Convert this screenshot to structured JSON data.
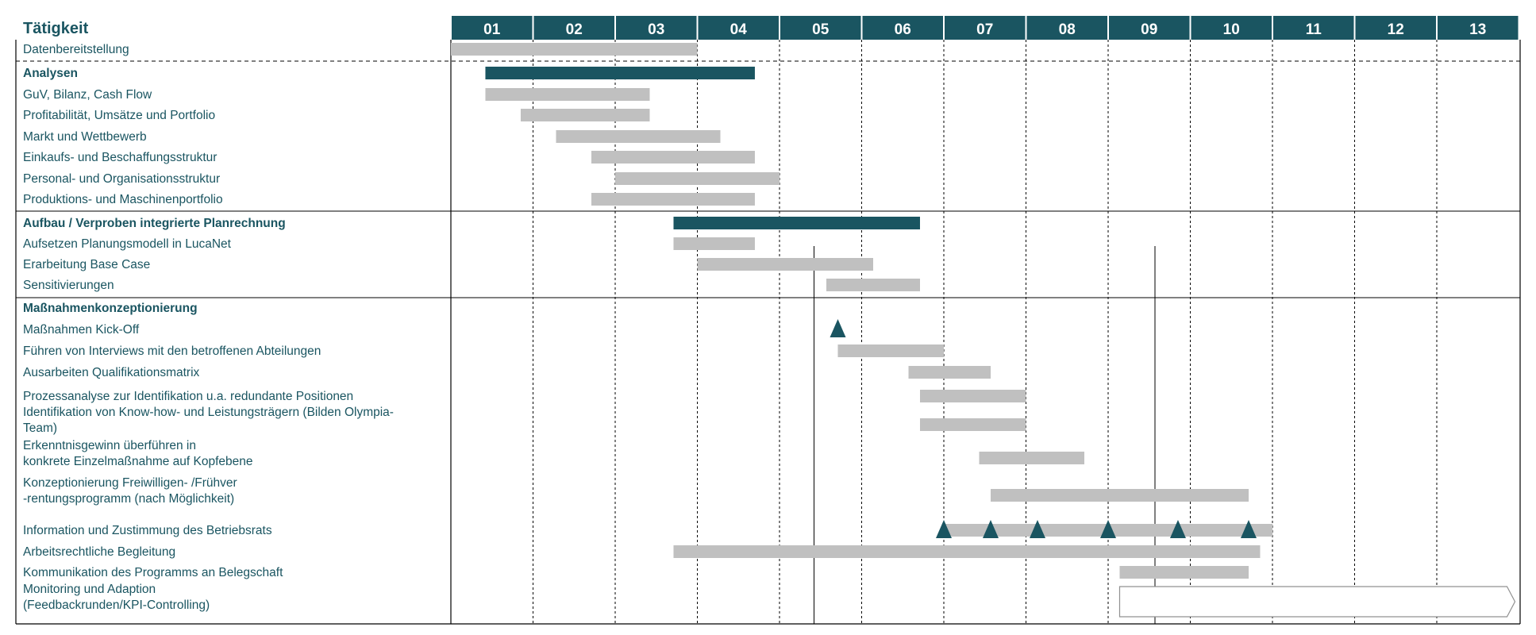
{
  "title": "Tätigkeit",
  "colors": {
    "header_bg": "#1a5561",
    "header_text": "#ffffff",
    "label_text": "#1a5561",
    "bar_gray": "#c0c0c0",
    "bar_dark": "#1a5561",
    "milestone": "#1a5561",
    "grid": "#000000"
  },
  "chart_data": {
    "type": "gantt",
    "x_unit": "Monat",
    "months": [
      "01",
      "02",
      "03",
      "04",
      "05",
      "06",
      "07",
      "08",
      "09",
      "10",
      "11",
      "12",
      "13"
    ],
    "xlim": [
      0,
      13
    ],
    "grid_lines": "dashed between months, solid after month 05",
    "rows": [
      {
        "label": "Datenbereitstellung",
        "kind": "task",
        "bars": [
          {
            "start": 0.0,
            "end": 3.0
          }
        ]
      },
      {
        "label": "Analysen",
        "kind": "section",
        "bars": [
          {
            "start": 0.42,
            "end": 3.7
          }
        ]
      },
      {
        "label": "GuV, Bilanz, Cash Flow",
        "kind": "task",
        "bars": [
          {
            "start": 0.42,
            "end": 2.42
          }
        ]
      },
      {
        "label": "Profitabilität, Umsätze und Portfolio",
        "kind": "task",
        "bars": [
          {
            "start": 0.85,
            "end": 2.42
          }
        ]
      },
      {
        "label": "Markt und Wettbewerb",
        "kind": "task",
        "bars": [
          {
            "start": 1.28,
            "end": 3.28
          }
        ]
      },
      {
        "label": "Einkaufs- und Beschaffungsstruktur",
        "kind": "task",
        "bars": [
          {
            "start": 1.71,
            "end": 3.7
          }
        ]
      },
      {
        "label": "Personal- und Organisationsstruktur",
        "kind": "task",
        "bars": [
          {
            "start": 2.0,
            "end": 4.0
          }
        ]
      },
      {
        "label": "Produktions- und Maschinenportfolio",
        "kind": "task",
        "bars": [
          {
            "start": 1.71,
            "end": 3.7
          }
        ]
      },
      {
        "label": "Aufbau / Verproben integrierte Planrechnung",
        "kind": "section",
        "bars": [
          {
            "start": 2.71,
            "end": 5.71
          }
        ]
      },
      {
        "label": "Aufsetzen Planungsmodell in LucaNet",
        "kind": "task",
        "bars": [
          {
            "start": 2.71,
            "end": 3.7
          }
        ]
      },
      {
        "label": "Erarbeitung Base Case",
        "kind": "task",
        "bars": [
          {
            "start": 3.0,
            "end": 5.14
          }
        ]
      },
      {
        "label": "Sensitivierungen",
        "kind": "task",
        "bars": [
          {
            "start": 4.57,
            "end": 5.71
          }
        ]
      },
      {
        "label": "Maßnahmenkonzeptionierung",
        "kind": "section",
        "bars": []
      },
      {
        "label": "Maßnahmen Kick-Off",
        "kind": "task",
        "bars": [],
        "milestones": [
          4.71
        ]
      },
      {
        "label": "Führen von Interviews mit den betroffenen Abteilungen",
        "kind": "task",
        "bars": [
          {
            "start": 4.71,
            "end": 6.0
          }
        ]
      },
      {
        "label": "Ausarbeiten Qualifikationsmatrix",
        "kind": "task",
        "bars": [
          {
            "start": 5.57,
            "end": 6.57
          }
        ]
      },
      {
        "label": "Prozessanalyse zur Identifikation u.a. redundante Positionen",
        "kind": "task",
        "bars": [
          {
            "start": 5.71,
            "end": 7.0
          }
        ]
      },
      {
        "label": "Identifikation von Know-how- und Leistungsträgern (Bilden Olympia-Team)",
        "lines": [
          "Identifikation von Know-how- und Leistungsträgern (Bilden Olympia-",
          "Team)"
        ],
        "kind": "task",
        "bars": [
          {
            "start": 5.71,
            "end": 7.0
          }
        ]
      },
      {
        "label": "Erkenntnisgewinn überführen in konkrete Einzelmaßnahme auf Kopfebene",
        "lines": [
          "Erkenntnisgewinn überführen in",
          "konkrete Einzelmaßnahme auf Kopfebene"
        ],
        "kind": "task",
        "bars": [
          {
            "start": 6.43,
            "end": 7.71
          }
        ]
      },
      {
        "label": "Konzeptionierung Freiwilligen- /Frühver -rentungsprogramm (nach Möglichkeit)",
        "lines": [
          "Konzeptionierung Freiwilligen- /Frühver",
          "-rentungsprogramm (nach Möglichkeit)"
        ],
        "kind": "task",
        "bars": [
          {
            "start": 6.57,
            "end": 9.71
          }
        ]
      },
      {
        "label": "Information und Zustimmung des Betriebsrats",
        "kind": "task",
        "bars": [
          {
            "start": 6.0,
            "end": 10.0
          }
        ],
        "milestones": [
          6.0,
          6.57,
          7.14,
          8.0,
          8.85,
          9.71
        ]
      },
      {
        "label": "Arbeitsrechtliche Begleitung",
        "kind": "task",
        "bars": [
          {
            "start": 2.71,
            "end": 9.85
          }
        ]
      },
      {
        "label": "Kommunikation des Programms an Belegschaft",
        "kind": "task",
        "bars": [
          {
            "start": 8.14,
            "end": 9.71
          }
        ]
      },
      {
        "label": "Monitoring und Adaption (Feedbackrunden/KPI-Controlling)",
        "lines": [
          "Monitoring und Adaption",
          "(Feedbackrunden/KPI-Controlling)"
        ],
        "kind": "task",
        "bars": [],
        "outline_arrow": {
          "start": 8.14,
          "end": 13.0
        }
      }
    ]
  }
}
